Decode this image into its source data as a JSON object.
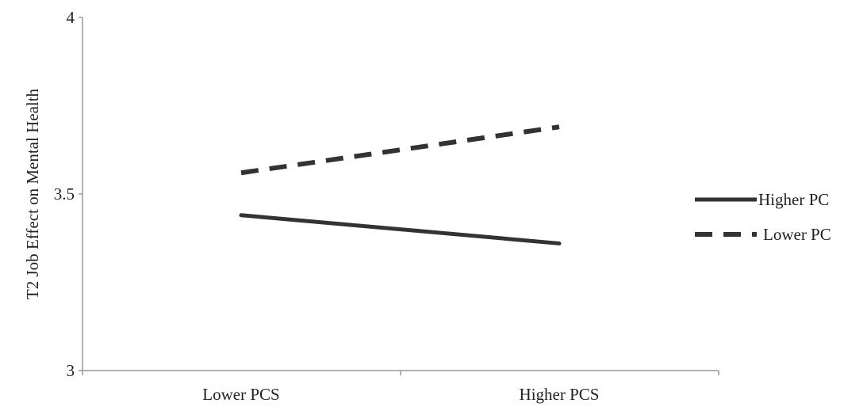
{
  "chart_data": {
    "type": "line",
    "title": "",
    "xlabel": "",
    "ylabel": "T2 Job Effect on Mental Health",
    "categories": [
      "Lower PCS",
      "Higher PCS"
    ],
    "ylim": [
      3,
      4
    ],
    "yticks": [
      "3",
      "3.5",
      "4"
    ],
    "grid": false,
    "legend_position": "right",
    "series": [
      {
        "name": "Higher PC",
        "values": [
          3.44,
          3.36
        ],
        "style": "solid",
        "color": "#333333"
      },
      {
        "name": "Lower PC",
        "values": [
          3.56,
          3.69
        ],
        "style": "dashed",
        "color": "#333333"
      }
    ]
  }
}
